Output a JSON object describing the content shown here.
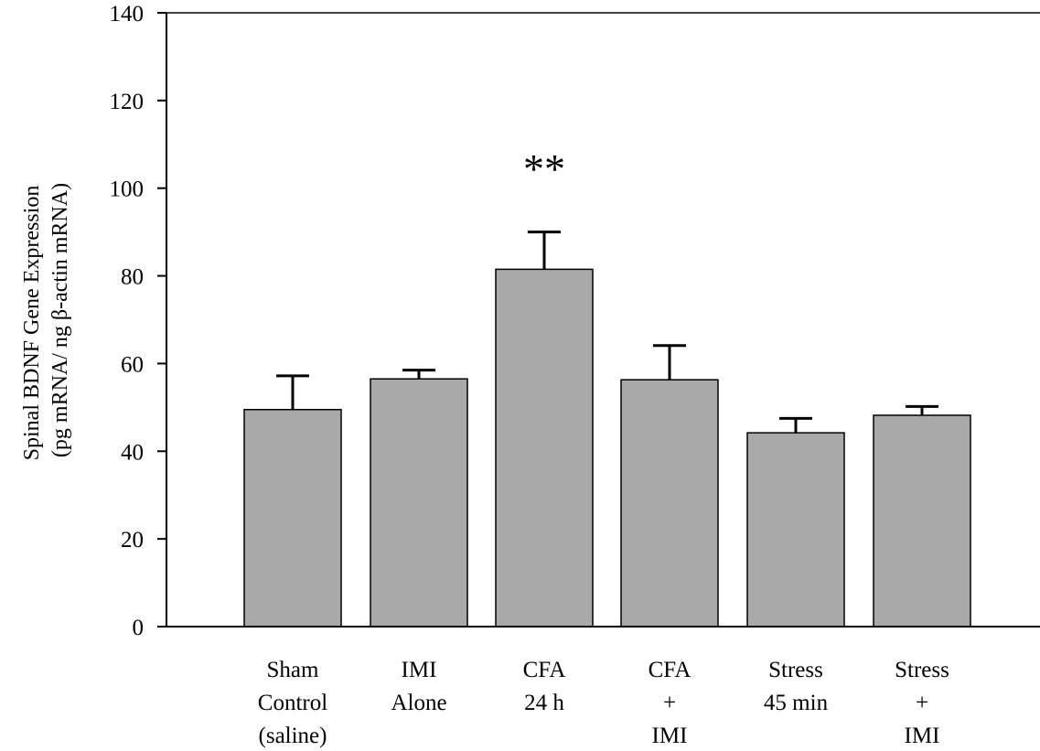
{
  "chart_data": {
    "type": "bar",
    "title": "",
    "xlabel": "",
    "ylabel_lines": [
      "Spinal BDNF Gene Expression",
      "(pg mRNA/ ng β-actin mRNA)"
    ],
    "ylim": [
      0,
      140
    ],
    "yticks": [
      0,
      20,
      40,
      60,
      80,
      100,
      120,
      140
    ],
    "categories": [
      [
        "Sham",
        "Control",
        "(saline)"
      ],
      [
        "IMI",
        "Alone"
      ],
      [
        "CFA",
        "24 h"
      ],
      [
        "CFA",
        "+",
        "IMI"
      ],
      [
        "Stress",
        "45 min"
      ],
      [
        "Stress",
        "+",
        "IMI"
      ]
    ],
    "values": [
      49.5,
      56.5,
      81.5,
      56.3,
      44.2,
      48.2
    ],
    "errors": [
      7.7,
      2.0,
      8.5,
      7.8,
      3.3,
      2.0
    ],
    "annotations": [
      {
        "category_index": 2,
        "text": "**"
      }
    ],
    "bar_color": "#a9a9a9",
    "grid": false,
    "legend": "none"
  }
}
